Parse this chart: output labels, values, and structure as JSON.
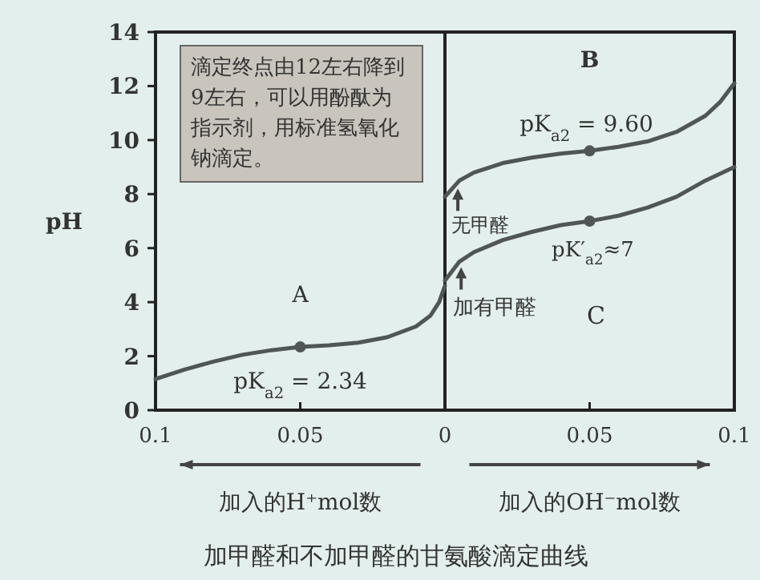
{
  "chart_data": {
    "type": "line",
    "title": "加甲醛和不加甲醛的甘氨酸滴定曲线",
    "ylabel": "pH",
    "xlim": [
      -0.1,
      0.1
    ],
    "xticks": [
      {
        "value": -0.1,
        "label": "0.1"
      },
      {
        "value": -0.05,
        "label": "0.05"
      },
      0,
      0.05,
      0.1
    ],
    "ylim": [
      0,
      14
    ],
    "yticks": [
      0,
      2,
      4,
      6,
      8,
      10,
      12,
      14
    ],
    "series": [
      {
        "color": "#505555",
        "x": [
          -0.1,
          -0.09,
          -0.08,
          -0.07,
          -0.06,
          -0.05,
          -0.04,
          -0.03,
          -0.02,
          -0.01,
          -0.005,
          -0.002,
          0
        ],
        "values": [
          1.15,
          1.5,
          1.8,
          2.05,
          2.22,
          2.34,
          2.4,
          2.5,
          2.7,
          3.1,
          3.5,
          4.0,
          4.6
        ]
      },
      {
        "color": "#505555",
        "x": [
          0,
          0.005,
          0.01,
          0.02,
          0.03,
          0.04,
          0.05,
          0.06,
          0.07,
          0.08,
          0.09,
          0.095,
          0.1
        ],
        "values": [
          7.9,
          8.5,
          8.8,
          9.15,
          9.35,
          9.5,
          9.6,
          9.75,
          9.95,
          10.3,
          10.9,
          11.4,
          12.1
        ]
      },
      {
        "color": "#505555",
        "x": [
          0,
          0.005,
          0.01,
          0.02,
          0.03,
          0.04,
          0.05,
          0.06,
          0.07,
          0.08,
          0.09,
          0.1
        ],
        "values": [
          4.8,
          5.5,
          5.85,
          6.3,
          6.6,
          6.85,
          7.0,
          7.2,
          7.5,
          7.9,
          8.5,
          9.0
        ]
      },
      {
        "type": "scatter",
        "marker": "circle",
        "color": "#505555",
        "x": [
          -0.05,
          0.05,
          0.05
        ],
        "values": [
          2.34,
          9.6,
          7.0
        ]
      }
    ],
    "ref_lines": [
      {
        "axis": "x",
        "value": 0,
        "color": "#222222"
      }
    ],
    "annotations": [
      "滴定终点由12左右降到9左右，可以用酚酞为指示剂，用标准氢氧化钠滴定。",
      "加入的H⁺mol数",
      "加入的OH⁻mol数",
      "B",
      "C",
      {
        "text": "pK$_{a2}$ = 2.34",
        "x": -0.05,
        "y": 2.34
      },
      {
        "text": "pK$_{a2}$ = 9.60",
        "x": 0.05,
        "y": 9.6
      },
      {
        "text": "pK′$_{a2}$≈7",
        "x": 0.05,
        "y": 7.0
      },
      {
        "text": "A",
        "x": -0.05,
        "y": 2.34
      },
      {
        "text": "无甲醛",
        "x": 0.01,
        "y": 8.8
      },
      {
        "text": "加有甲醛",
        "x": 0.02,
        "y": 6.3
      }
    ],
    "marker": "none",
    "line_style": "solid"
  }
}
